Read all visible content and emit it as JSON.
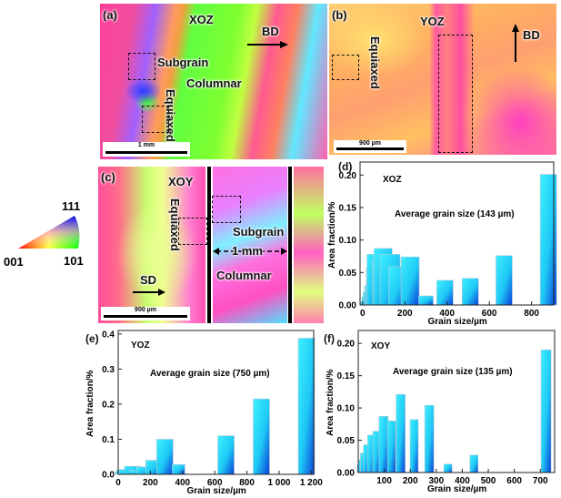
{
  "panels": {
    "a": {
      "tag": "(a)",
      "plane": "XOZ",
      "direction": "BD",
      "labels": [
        "Subgrain",
        "Columnar",
        "Equiaxed"
      ],
      "scale": "1 mm"
    },
    "b": {
      "tag": "(b)",
      "plane": "YOZ",
      "direction": "BD",
      "labels": [
        "Equiaxed"
      ],
      "scale": "900 µm"
    },
    "c": {
      "tag": "(c)",
      "plane": "XOY",
      "direction": "SD",
      "labels": [
        "Equiaxed",
        "Subgrain",
        "Columnar"
      ],
      "span": "1 mm",
      "scale": "900 µm"
    }
  },
  "ipf_legend": {
    "corner_111": "111",
    "corner_001": "001",
    "corner_101": "101",
    "colors": {
      "001": "#ff0000",
      "101": "#00ff00",
      "111": "#0000ff"
    }
  },
  "bar_gradient": {
    "light": "#3ff0ff",
    "dark": "#0a3fd8"
  },
  "chart_data": [
    {
      "panel": "(d)",
      "type": "bar",
      "title": "XOZ",
      "annotation": "Average grain size (143 µm)",
      "xlabel": "Grain size/µm",
      "ylabel": "Area fraction/%",
      "xlim": [
        -12,
        905
      ],
      "ylim": [
        0,
        0.22
      ],
      "xticks": [
        0,
        200,
        400,
        600,
        800
      ],
      "xticklabels": [
        "0",
        "200",
        "400",
        "600",
        "800"
      ],
      "yticks": [
        0,
        0.05,
        0.1,
        0.15,
        0.2
      ],
      "yticklabels": [
        "0.00",
        "0.05",
        "0.10",
        "0.15",
        "0.20"
      ],
      "x": [
        4,
        11,
        18,
        27,
        39,
        55,
        72,
        97,
        130,
        170,
        225,
        300,
        390,
        510,
        670,
        880
      ],
      "values": [
        0.005,
        0.012,
        0.02,
        0.03,
        0.057,
        0.078,
        0.071,
        0.087,
        0.078,
        0.059,
        0.074,
        0.014,
        0.038,
        0.041,
        0.076,
        0.201
      ]
    },
    {
      "panel": "(e)",
      "type": "bar",
      "title": "YOZ",
      "annotation": "Average grain size (750 µm)",
      "xlabel": "Grain size/µm",
      "ylabel": "Area fraction/%",
      "xlim": [
        0,
        1215
      ],
      "ylim": [
        0,
        0.41
      ],
      "xticks": [
        0,
        200,
        400,
        600,
        800,
        1000,
        1200
      ],
      "xticklabels": [
        "0",
        "200",
        "400",
        "600",
        "800",
        "1 000",
        "1 200"
      ],
      "yticks": [
        0,
        0.1,
        0.2,
        0.3,
        0.4
      ],
      "yticklabels": [
        "0.0",
        "0.1",
        "0.2",
        "0.3",
        "0.4"
      ],
      "x": [
        10,
        30,
        55,
        90,
        118,
        165,
        222,
        290,
        375,
        670,
        890,
        1170
      ],
      "values": [
        0.008,
        0.013,
        0.014,
        0.023,
        0.012,
        0.021,
        0.04,
        0.1,
        0.028,
        0.11,
        0.215,
        0.388
      ]
    },
    {
      "panel": "(f)",
      "type": "bar",
      "title": "XOY",
      "annotation": "Average grain size (135 µm)",
      "xlabel": "Grain size/µm",
      "ylabel": "Area fraction/%",
      "xlim": [
        0,
        755
      ],
      "ylim": [
        0,
        0.22
      ],
      "xticks": [
        100,
        200,
        300,
        400,
        500,
        600,
        700
      ],
      "xticklabels": [
        "100",
        "200",
        "300",
        "400",
        "500",
        "600",
        "700"
      ],
      "yticks": [
        0,
        0.05,
        0.1,
        0.15,
        0.2
      ],
      "yticklabels": [
        "0.00",
        "0.05",
        "0.10",
        "0.15",
        "0.20"
      ],
      "x": [
        4,
        11,
        19,
        32,
        50,
        70,
        97,
        128,
        163,
        215,
        273,
        345,
        445,
        722
      ],
      "values": [
        0.012,
        0.02,
        0.03,
        0.043,
        0.058,
        0.064,
        0.087,
        0.08,
        0.121,
        0.082,
        0.104,
        0.013,
        0.027,
        0.19
      ]
    }
  ]
}
